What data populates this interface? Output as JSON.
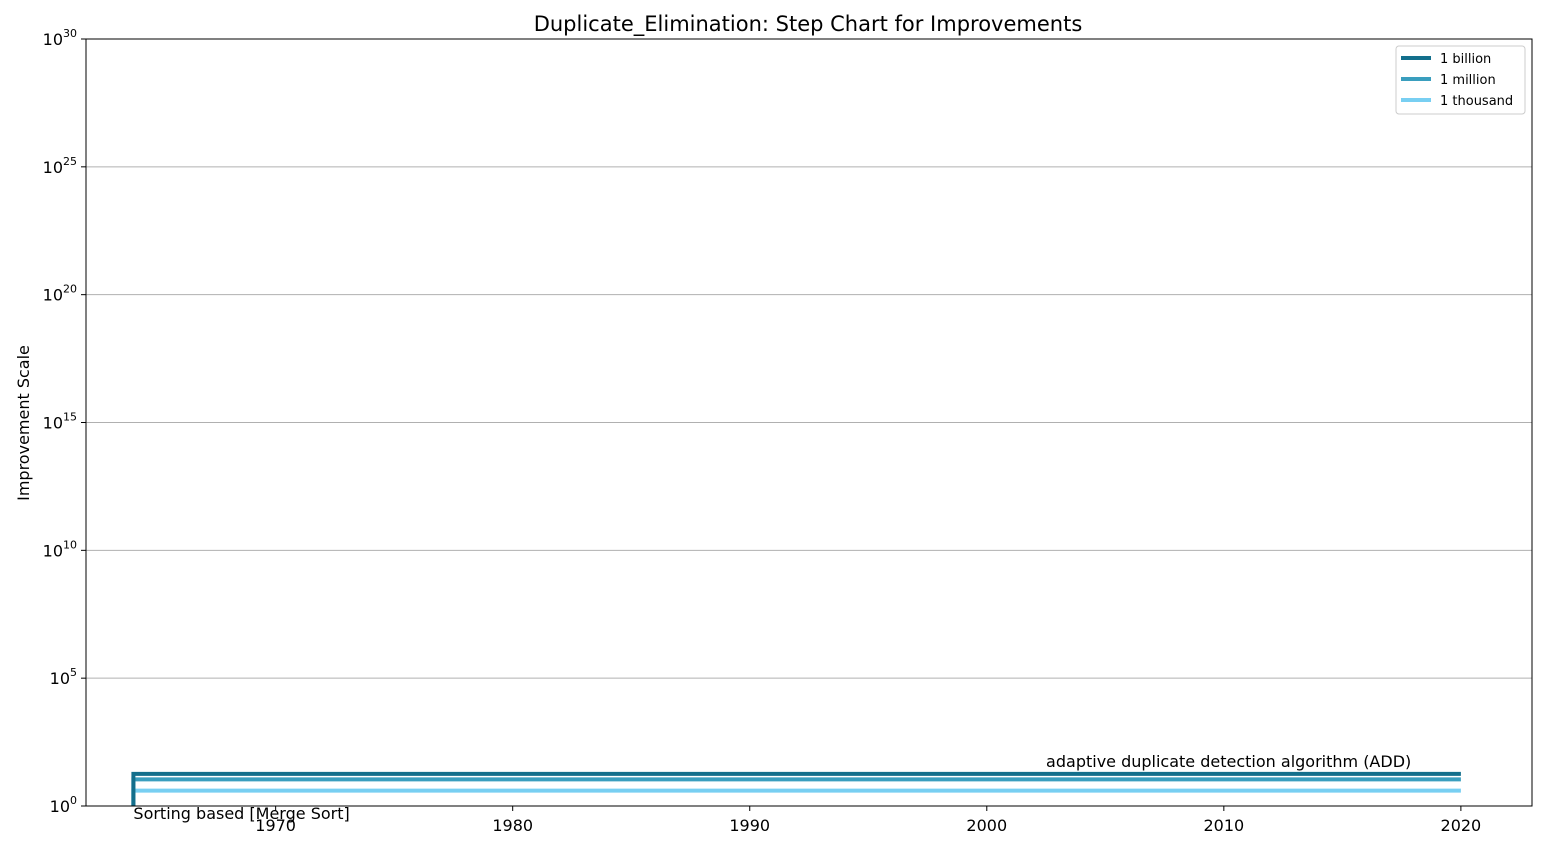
{
  "chart_data": {
    "type": "line",
    "step": true,
    "title": "Duplicate_Elimination: Step Chart for Improvements",
    "xlabel": "",
    "ylabel": "Improvement Scale",
    "xlim": [
      1962,
      2023
    ],
    "ylim_exponent": [
      0,
      30
    ],
    "y_scale": "log",
    "grid": "horizontal",
    "legend_position": "top-right",
    "x_ticks": [
      {
        "value": 1970,
        "label": "1970"
      },
      {
        "value": 1980,
        "label": "1980"
      },
      {
        "value": 1990,
        "label": "1990"
      },
      {
        "value": 2000,
        "label": "2000"
      },
      {
        "value": 2010,
        "label": "2010"
      },
      {
        "value": 2020,
        "label": "2020"
      }
    ],
    "y_ticks": [
      {
        "value": 1,
        "base": "10",
        "exp": "0"
      },
      {
        "value": 100000,
        "base": "10",
        "exp": "5"
      },
      {
        "value": 10000000000.0,
        "base": "10",
        "exp": "10"
      },
      {
        "value": 1000000000000000.0,
        "base": "10",
        "exp": "15"
      },
      {
        "value": 1e+20,
        "base": "10",
        "exp": "20"
      },
      {
        "value": 1e+25,
        "base": "10",
        "exp": "25"
      },
      {
        "value": 1e+30,
        "base": "10",
        "exp": "30"
      }
    ],
    "series": [
      {
        "name": "1 billion",
        "color": "#136f8c",
        "x": [
          1964,
          2020
        ],
        "y": [
          1,
          18.0
        ]
      },
      {
        "name": "1 million",
        "color": "#3a9ebe",
        "x": [
          1964,
          2020
        ],
        "y": [
          1,
          11.0
        ]
      },
      {
        "name": "1 thousand",
        "color": "#78cff2",
        "x": [
          1964,
          2020
        ],
        "y": [
          1,
          4
        ]
      }
    ],
    "annotations": [
      {
        "text": "Sorting based [Merge Sort]",
        "x": 1964,
        "y": 1
      },
      {
        "text": "adaptive duplicate detection algorithm (ADD)",
        "x": 2002.5,
        "y": 18.0
      }
    ]
  }
}
